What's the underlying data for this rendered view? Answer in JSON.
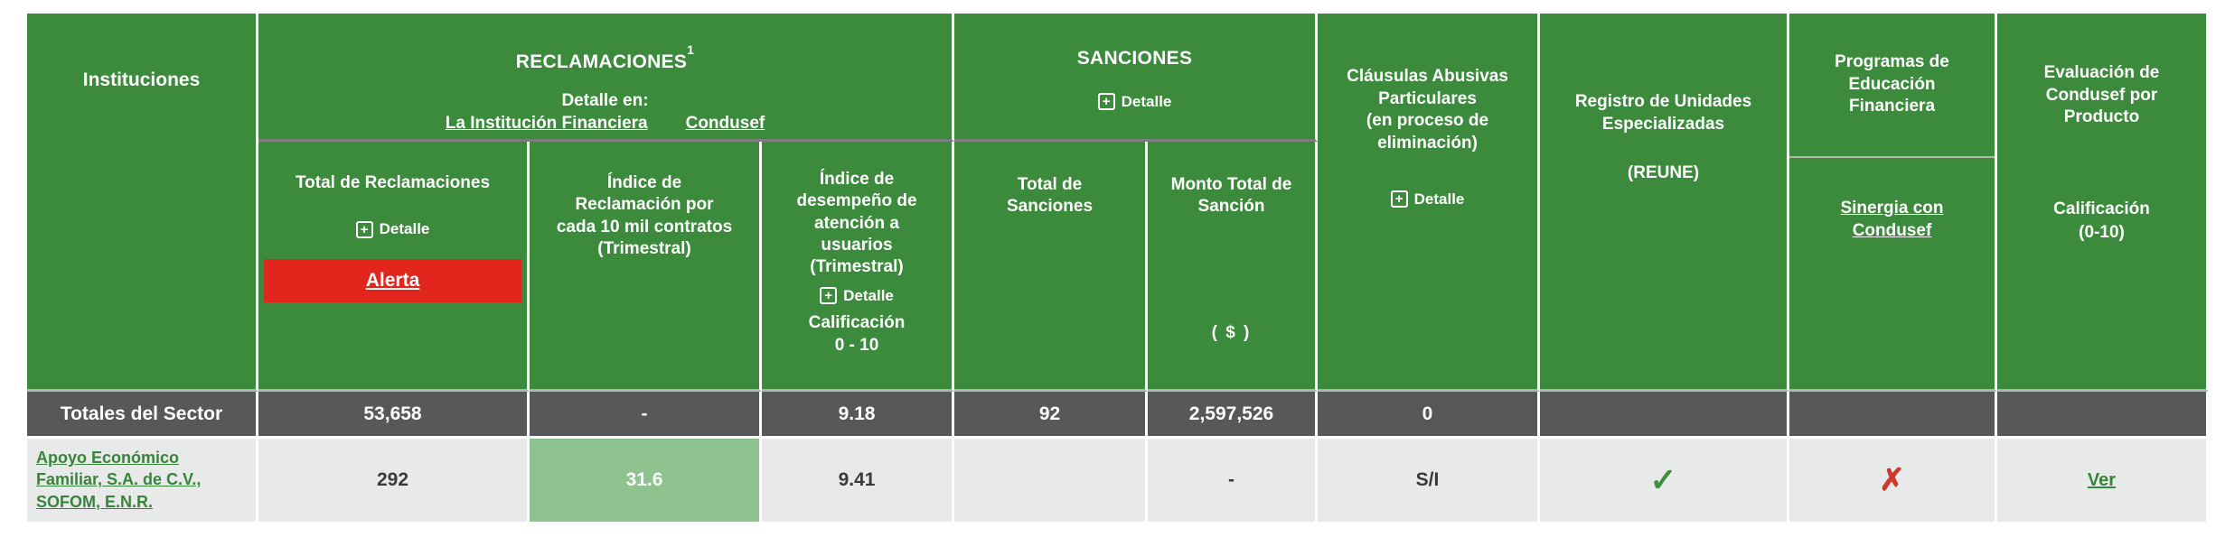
{
  "colors": {
    "header_green": "#3c8a3c",
    "alert_red": "#e3261d",
    "totals_bg": "#57585a",
    "row_bg": "#e8e9e9",
    "highlight_green": "#8ec28e",
    "link_green": "#37853a",
    "check_green": "#3f8f3f",
    "cross_red": "#ce392d"
  },
  "icons": {
    "plus": "+",
    "check": "✓",
    "cross": "✗"
  },
  "header": {
    "instituciones_label": "Instituciones",
    "reclamaciones": {
      "title": "RECLAMACIONES",
      "sup": "1",
      "detalle_en": "Detalle en:",
      "link_institucion": "La Institución Financiera",
      "link_condusef": "Condusef",
      "total": {
        "title": "Total de Reclamaciones",
        "detalle": "Detalle",
        "alerta": "Alerta"
      },
      "indice_reclamacion": {
        "lines": [
          "Índice de",
          "Reclamación por",
          "cada 10 mil contratos",
          "(Trimestral)"
        ]
      },
      "indice_desempeno": {
        "lines": [
          "Índice de",
          "desempeño de",
          "atención a",
          "usuarios",
          "(Trimestral)"
        ],
        "detalle": "Detalle",
        "calificacion": [
          "Calificación",
          "0 - 10"
        ]
      }
    },
    "sanciones": {
      "title": "SANCIONES",
      "detalle": "Detalle",
      "total_lines": [
        "Total de",
        "Sanciones"
      ],
      "monto_lines": [
        "Monto Total de",
        "Sanción"
      ],
      "monto_unit": "( $ )"
    },
    "clausulas": {
      "lines": [
        "Cláusulas Abusivas",
        "Particulares",
        "(en proceso de",
        "eliminación)"
      ],
      "detalle": "Detalle"
    },
    "reune": {
      "lines": [
        "Registro de Unidades",
        "Especializadas"
      ],
      "acronym": "(REUNE)"
    },
    "programas": {
      "lines": [
        "Programas de",
        "Educación",
        "Financiera"
      ],
      "link_lines": [
        "Sinergia con",
        "Condusef"
      ]
    },
    "evaluacion": {
      "lines": [
        "Evaluación de",
        "Condusef por",
        "Producto"
      ],
      "calificacion_lines": [
        "Calificación",
        "(0-10)"
      ]
    }
  },
  "totales": {
    "label": "Totales del Sector",
    "total_reclamaciones": "53,658",
    "indice_reclamacion": "-",
    "indice_desempeno": "9.18",
    "total_sanciones": "92",
    "monto_total": "2,597,526",
    "clausulas": "0",
    "reune": "",
    "programas": "",
    "evaluacion": ""
  },
  "row": {
    "name_lines": [
      "Apoyo Económico",
      "Familiar, S.A. de C.V.,",
      "SOFOM, E.N.R."
    ],
    "total_reclamaciones": "292",
    "indice_reclamacion": "31.6",
    "indice_desempeno": "9.41",
    "total_sanciones": "",
    "monto_total": "-",
    "clausulas": "S/I",
    "evaluacion_link": "Ver"
  }
}
